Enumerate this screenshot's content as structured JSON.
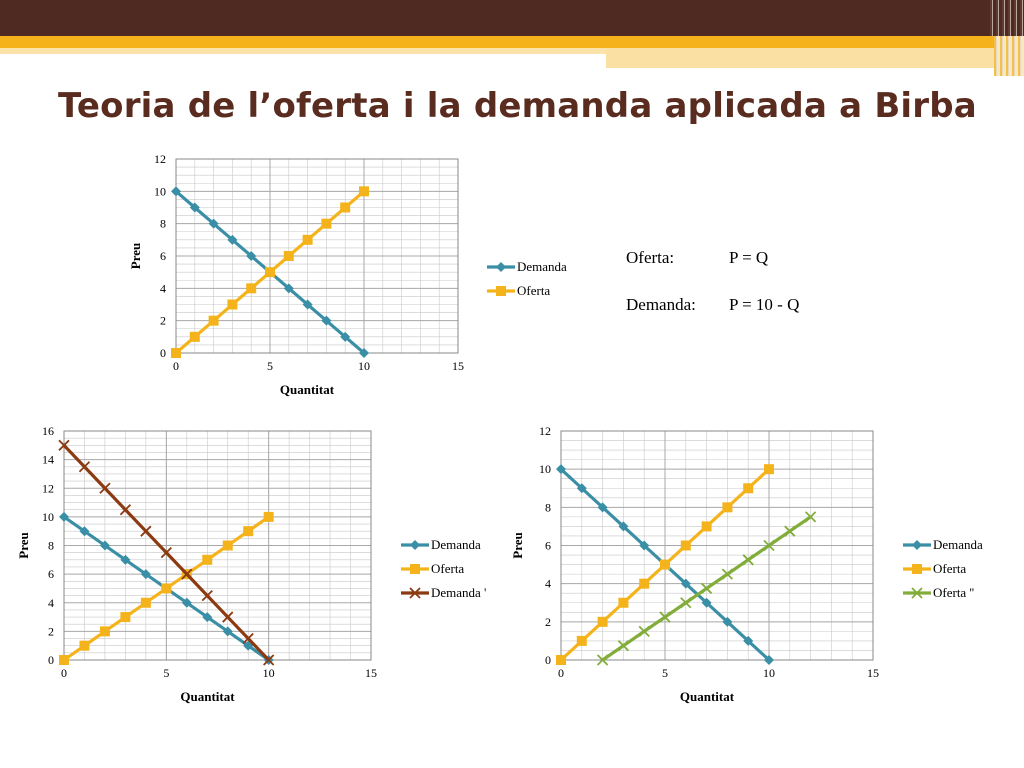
{
  "slide": {
    "title": "Teoria de l’oferta i la demanda aplicada a Birba",
    "equations": {
      "oferta_label": "Oferta:",
      "oferta_formula": "P = Q",
      "demanda_label": "Demanda:",
      "demanda_formula": "P = 10 - Q"
    }
  },
  "colors": {
    "demanda": "#3a8fa6",
    "oferta": "#f5b31b",
    "demanda_prime": "#8b3a12",
    "oferta_double_prime": "#82ad3b",
    "grid": "#c8c8c8",
    "axis": "#888888"
  },
  "chart_data": [
    {
      "type": "line",
      "xlabel": "Quantitat",
      "ylabel": "Preu",
      "xlim": [
        0,
        15
      ],
      "ylim": [
        0,
        12
      ],
      "xticks": [
        0,
        5,
        10,
        15
      ],
      "yticks": [
        0,
        2,
        4,
        6,
        8,
        10,
        12
      ],
      "grid": true,
      "legend_position": "right",
      "series": [
        {
          "name": "Demanda",
          "marker": "diamond",
          "color_key": "demanda",
          "x": [
            0,
            1,
            2,
            3,
            4,
            5,
            6,
            7,
            8,
            9,
            10
          ],
          "y": [
            10,
            9,
            8,
            7,
            6,
            5,
            4,
            3,
            2,
            1,
            0
          ]
        },
        {
          "name": "Oferta",
          "marker": "square",
          "color_key": "oferta",
          "x": [
            0,
            1,
            2,
            3,
            4,
            5,
            6,
            7,
            8,
            9,
            10
          ],
          "y": [
            0,
            1,
            2,
            3,
            4,
            5,
            6,
            7,
            8,
            9,
            10
          ]
        }
      ]
    },
    {
      "type": "line",
      "xlabel": "Quantitat",
      "ylabel": "Preu",
      "xlim": [
        0,
        15
      ],
      "ylim": [
        0,
        16
      ],
      "xticks": [
        0,
        5,
        10,
        15
      ],
      "yticks": [
        0,
        2,
        4,
        6,
        8,
        10,
        12,
        14,
        16
      ],
      "grid": true,
      "legend_position": "right",
      "series": [
        {
          "name": "Demanda",
          "marker": "diamond",
          "color_key": "demanda",
          "x": [
            0,
            1,
            2,
            3,
            4,
            5,
            6,
            7,
            8,
            9,
            10
          ],
          "y": [
            10,
            9,
            8,
            7,
            6,
            5,
            4,
            3,
            2,
            1,
            0
          ]
        },
        {
          "name": "Oferta",
          "marker": "square",
          "color_key": "oferta",
          "x": [
            0,
            1,
            2,
            3,
            4,
            5,
            6,
            7,
            8,
            9,
            10
          ],
          "y": [
            0,
            1,
            2,
            3,
            4,
            5,
            6,
            7,
            8,
            9,
            10
          ]
        },
        {
          "name": "Demanda '",
          "marker": "x",
          "color_key": "demanda_prime",
          "x": [
            0,
            1,
            2,
            3,
            4,
            5,
            6,
            7,
            8,
            9,
            10
          ],
          "y": [
            15,
            13.5,
            12,
            10.5,
            9,
            7.5,
            6,
            4.5,
            3,
            1.5,
            0
          ]
        }
      ]
    },
    {
      "type": "line",
      "xlabel": "Quantitat",
      "ylabel": "Preu",
      "xlim": [
        0,
        15
      ],
      "ylim": [
        0,
        12
      ],
      "xticks": [
        0,
        5,
        10,
        15
      ],
      "yticks": [
        0,
        2,
        4,
        6,
        8,
        10,
        12
      ],
      "grid": true,
      "legend_position": "right",
      "series": [
        {
          "name": "Demanda",
          "marker": "diamond",
          "color_key": "demanda",
          "x": [
            0,
            1,
            2,
            3,
            4,
            5,
            6,
            7,
            8,
            9,
            10
          ],
          "y": [
            10,
            9,
            8,
            7,
            6,
            5,
            4,
            3,
            2,
            1,
            0
          ]
        },
        {
          "name": "Oferta",
          "marker": "square",
          "color_key": "oferta",
          "x": [
            0,
            1,
            2,
            3,
            4,
            5,
            6,
            7,
            8,
            9,
            10
          ],
          "y": [
            0,
            1,
            2,
            3,
            4,
            5,
            6,
            7,
            8,
            9,
            10
          ]
        },
        {
          "name": "Oferta ''",
          "marker": "x",
          "color_key": "oferta_double_prime",
          "x": [
            2,
            3,
            4,
            5,
            6,
            7,
            8,
            9,
            10,
            11,
            12
          ],
          "y": [
            0,
            0.75,
            1.5,
            2.25,
            3,
            3.75,
            4.5,
            5.25,
            6,
            6.75,
            7.5
          ]
        }
      ]
    }
  ]
}
